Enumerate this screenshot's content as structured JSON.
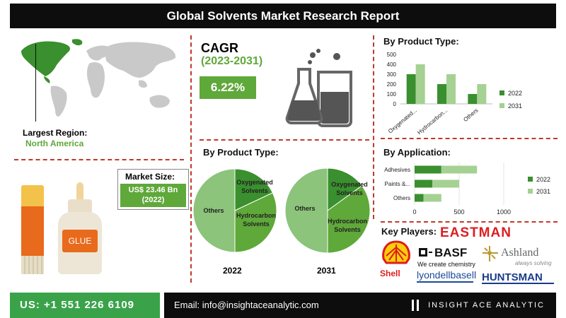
{
  "header": {
    "title": "Global Solvents Market Research Report"
  },
  "largest_region": {
    "label": "Largest Region:",
    "value": "North America"
  },
  "market_size": {
    "label": "Market Size:",
    "value_line1": "US$ 23.46 Bn",
    "value_line2": "(2022)"
  },
  "cagr": {
    "title": "CAGR",
    "period": "(2023-2031)",
    "value": "6.22%"
  },
  "glue": {
    "label": "GLUE"
  },
  "pie_section": {
    "title": "By Product Type:",
    "year_left": "2022",
    "year_right": "2031"
  },
  "bar_section": {
    "title": "By Product Type:"
  },
  "app_section": {
    "title": "By Application:"
  },
  "key_players": {
    "title": "Key Players:",
    "eastman": "EASTMAN",
    "basf": "BASF",
    "basf_tag": "We create chemistry",
    "ashland": "Ashland",
    "ashland_tag": "always solving",
    "shell": "Shell",
    "lyondell": "lyondellbasell",
    "huntsman": "HUNTSMAN"
  },
  "footer": {
    "phone": "US: +1 551 226 6109",
    "email": "Email: info@insightaceanalytic.com",
    "brand": "INSIGHT ACE ANALYTIC"
  },
  "colors": {
    "dark_green": "#3a8f2e",
    "mid_green": "#5fa83a",
    "light_green": "#8bc47a",
    "accent_red": "#c0392b",
    "shell_red": "#dd1d21",
    "shell_yellow": "#fbce07"
  },
  "chart_data": [
    {
      "id": "pie_2022",
      "type": "pie",
      "title": "2022",
      "labels": [
        "Oxygenated Solvents",
        "Hydrocarbon Solvents",
        "Others"
      ],
      "label_lines": [
        [
          "Oxygenated",
          "Solvents"
        ],
        [
          "Hydrocarbon",
          "Solvents"
        ],
        [
          "Others"
        ]
      ],
      "values": [
        18,
        32,
        50
      ],
      "colors": [
        "#3a8f2e",
        "#5fa83a",
        "#8bc47a"
      ]
    },
    {
      "id": "pie_2031",
      "type": "pie",
      "title": "2031",
      "labels": [
        "Oxygenated Solvents",
        "Hydrocarbon Solvents",
        "Others"
      ],
      "label_lines": [
        [
          "Oxygenated",
          "Solvents"
        ],
        [
          "Hydrocarbon",
          "Solvents"
        ],
        [
          "Others"
        ]
      ],
      "values": [
        15,
        35,
        50
      ],
      "colors": [
        "#3a8f2e",
        "#5fa83a",
        "#8bc47a"
      ]
    },
    {
      "id": "bar_product",
      "type": "bar",
      "categories": [
        "Oxygenated...",
        "Hydrocarbon...",
        "Others"
      ],
      "series": [
        {
          "name": "2022",
          "values": [
            300,
            200,
            100
          ],
          "color": "#3a8f2e"
        },
        {
          "name": "2031",
          "values": [
            400,
            300,
            200
          ],
          "color": "#a5d193"
        }
      ],
      "ylim": [
        0,
        500
      ],
      "yticks": [
        0,
        100,
        200,
        300,
        400,
        500
      ],
      "legend": "right"
    },
    {
      "id": "bar_application",
      "type": "bar",
      "orientation": "horizontal",
      "categories": [
        "Adhesives",
        "Paints &...",
        "Others"
      ],
      "series": [
        {
          "name": "2022",
          "values": [
            300,
            200,
            100
          ],
          "color": "#3a8f2e"
        },
        {
          "name": "2031",
          "values": [
            400,
            300,
            200
          ],
          "color": "#a5d193"
        }
      ],
      "xlim": [
        0,
        1000
      ],
      "xticks": [
        0,
        500,
        1000
      ],
      "legend": "right"
    }
  ]
}
